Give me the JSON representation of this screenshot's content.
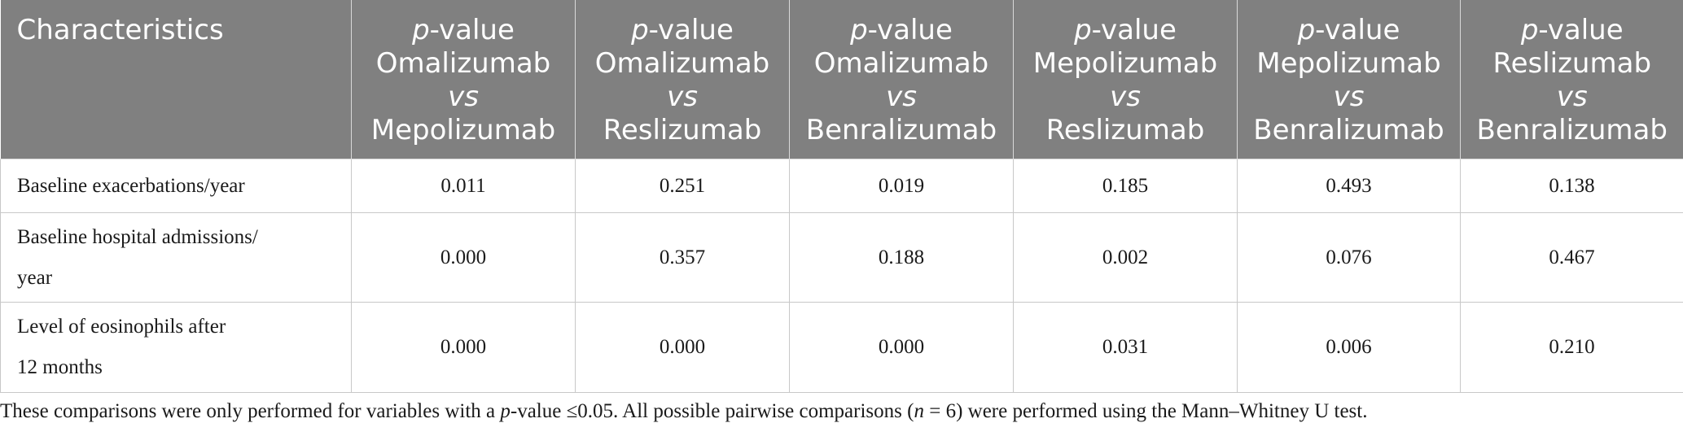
{
  "table": {
    "header": {
      "first": "Characteristics",
      "columns": [
        {
          "pvalue_prefix": "p",
          "pvalue_suffix": "-value",
          "drug_a": "Omalizumab",
          "vs": "vs",
          "drug_b": "Mepolizumab"
        },
        {
          "pvalue_prefix": "p",
          "pvalue_suffix": "-value",
          "drug_a": "Omalizumab",
          "vs": "vs",
          "drug_b": "Reslizumab"
        },
        {
          "pvalue_prefix": "p",
          "pvalue_suffix": "-value",
          "drug_a": "Omalizumab",
          "vs": "vs",
          "drug_b": "Benralizumab"
        },
        {
          "pvalue_prefix": "p",
          "pvalue_suffix": "-value",
          "drug_a": "Mepolizumab",
          "vs": "vs",
          "drug_b": "Reslizumab"
        },
        {
          "pvalue_prefix": "p",
          "pvalue_suffix": "-value",
          "drug_a": "Mepolizumab",
          "vs": "vs",
          "drug_b": "Benralizumab"
        },
        {
          "pvalue_prefix": "p",
          "pvalue_suffix": "-value",
          "drug_a": "Reslizumab",
          "vs": "vs",
          "drug_b": "Benralizumab"
        }
      ]
    },
    "rows": [
      {
        "label_line1": "Baseline exacerbations/year",
        "label_line2": "",
        "values": [
          "0.011",
          "0.251",
          "0.019",
          "0.185",
          "0.493",
          "0.138"
        ]
      },
      {
        "label_line1": "Baseline hospital admissions/",
        "label_line2": "year",
        "values": [
          "0.000",
          "0.357",
          "0.188",
          "0.002",
          "0.076",
          "0.467"
        ]
      },
      {
        "label_line1": "Level of eosinophils after",
        "label_line2": "12 months",
        "values": [
          "0.000",
          "0.000",
          "0.000",
          "0.031",
          "0.006",
          "0.210"
        ]
      }
    ]
  },
  "footnote": {
    "part1": "These comparisons were only performed for variables with a ",
    "p_italic": "p",
    "part2": "-value ≤0.05. All possible pairwise comparisons (",
    "n_italic": "n",
    "part3": " = 6) were performed using the Mann–Whitney U test."
  }
}
